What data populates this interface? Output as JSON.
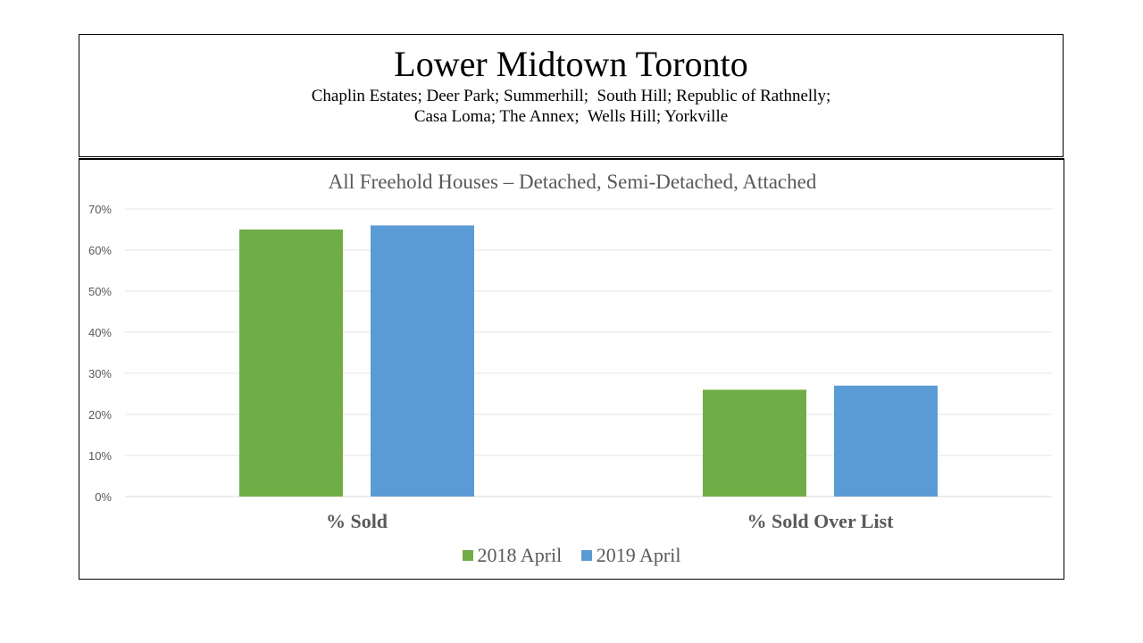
{
  "header": {
    "title": "Lower Midtown Toronto",
    "subtitle_line1": "Chaplin Estates; Deer Park; Summerhill;  South Hill; Republic of Rathnelly;",
    "subtitle_line2": "Casa Loma; The Annex;  Wells Hill; Yorkville"
  },
  "chart_data": {
    "type": "bar",
    "title": "All Freehold Houses – Detached, Semi-Detached, Attached",
    "categories": [
      "% Sold",
      "% Sold Over List"
    ],
    "series": [
      {
        "name": "2018 April",
        "values": [
          65,
          26
        ],
        "color": "#70ad47"
      },
      {
        "name": "2019 April",
        "values": [
          66,
          27
        ],
        "color": "#5b9bd5"
      }
    ],
    "ylim": [
      0,
      70
    ],
    "yticks": [
      "0%",
      "10%",
      "20%",
      "30%",
      "40%",
      "50%",
      "60%",
      "70%"
    ],
    "grid": true,
    "legend_position": "bottom"
  }
}
